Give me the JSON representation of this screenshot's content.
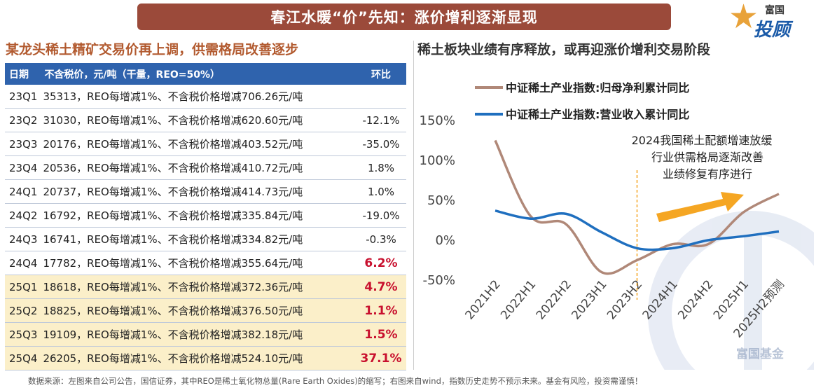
{
  "title": "春江水暖“价”先知：涨价增利逐渐显现",
  "logo": {
    "top": "富国",
    "main": "投顾",
    "char": "星"
  },
  "left": {
    "subtitle": "某龙头稀土精矿交易价再上调，供需格局改善逐步",
    "table": {
      "headers": [
        "日期",
        "不含税价，元/吨（干量，REO=50%）",
        "环比"
      ],
      "rows": [
        {
          "q": "23Q1",
          "desc": "35313，REO每增减1%、不含税价格增减706.26元/吨",
          "chg": "",
          "hl": false,
          "red": false
        },
        {
          "q": "23Q2",
          "desc": "31030，REO每增减1%、不含税价格增减620.60元/吨",
          "chg": "-12.1%",
          "hl": false,
          "red": false
        },
        {
          "q": "23Q3",
          "desc": "20176，REO每增减1%、不含税价格增减403.52元/吨",
          "chg": "-35.0%",
          "hl": false,
          "red": false
        },
        {
          "q": "23Q4",
          "desc": "20536，REO每增减1%、不含税价格增减410.72元/吨",
          "chg": "1.8%",
          "hl": false,
          "red": false
        },
        {
          "q": "24Q1",
          "desc": "20737，REO每增减1%、不含税价格增减414.73元/吨",
          "chg": "1.0%",
          "hl": false,
          "red": false
        },
        {
          "q": "24Q2",
          "desc": "16792，REO每增减1%、不含税价格增减335.84元/吨",
          "chg": "-19.0%",
          "hl": false,
          "red": false
        },
        {
          "q": "24Q3",
          "desc": "16741，REO每增减1%、不含税价格增减334.82元/吨",
          "chg": "-0.3%",
          "hl": false,
          "red": false
        },
        {
          "q": "24Q4",
          "desc": "17782，REO每增减1%、不含税价格增减355.64元/吨",
          "chg": "6.2%",
          "hl": false,
          "red": true
        },
        {
          "q": "25Q1",
          "desc": "18618，REO每增减1%、不含税价格增减372.36元/吨",
          "chg": "4.7%",
          "hl": true,
          "red": true
        },
        {
          "q": "25Q2",
          "desc": "18825，REO每增减1%、不含税价格增减376.50元/吨",
          "chg": "1.1%",
          "hl": true,
          "red": true
        },
        {
          "q": "25Q3",
          "desc": "19109，REO每增减1%、不含税价格增减382.18元/吨",
          "chg": "1.5%",
          "hl": true,
          "red": true
        },
        {
          "q": "25Q4",
          "desc": "26205，REO每增减1%、不含税价格增减524.10元/吨",
          "chg": "37.1%",
          "hl": true,
          "red": true
        }
      ]
    }
  },
  "right": {
    "subtitle": "稀土板块业绩有序释放，或再迎涨价增利交易阶段"
  },
  "chart_data": {
    "type": "line",
    "categories": [
      "2021H2",
      "2022H1",
      "2022H2",
      "2023H1",
      "2023H2",
      "2024H1",
      "2024H2",
      "2025H1",
      "2025H2预测"
    ],
    "series": [
      {
        "name": "中证稀土产业指数:归母净利累计同比",
        "color": "#b08878",
        "values": [
          125,
          30,
          20,
          -40,
          -25,
          -5,
          -5,
          35,
          58
        ]
      },
      {
        "name": "中证稀土产业指数:营业收入累计同比",
        "color": "#1f6fbf",
        "values": [
          37,
          27,
          33,
          10,
          -10,
          -10,
          0,
          5,
          11
        ]
      }
    ],
    "yticks": [
      "150%",
      "100%",
      "50%",
      "0%",
      "-50%"
    ],
    "ylim": [
      -50,
      150
    ],
    "annotation": [
      "2024我国稀土配额增速放缓",
      "行业供需格局逐渐改善",
      "业绩修复有序进行"
    ],
    "marker_category": "2023H2",
    "arrow_color": "#f5a623",
    "watermark": "富国基金"
  },
  "footer": "数据来源：左图来自公司公告，国信证券，其中REO是稀土氧化物总量(Rare Earth Oxides)的缩写；右图来自wind，指数历史走势不预示未来。基金有风险，投资需谨慎！"
}
